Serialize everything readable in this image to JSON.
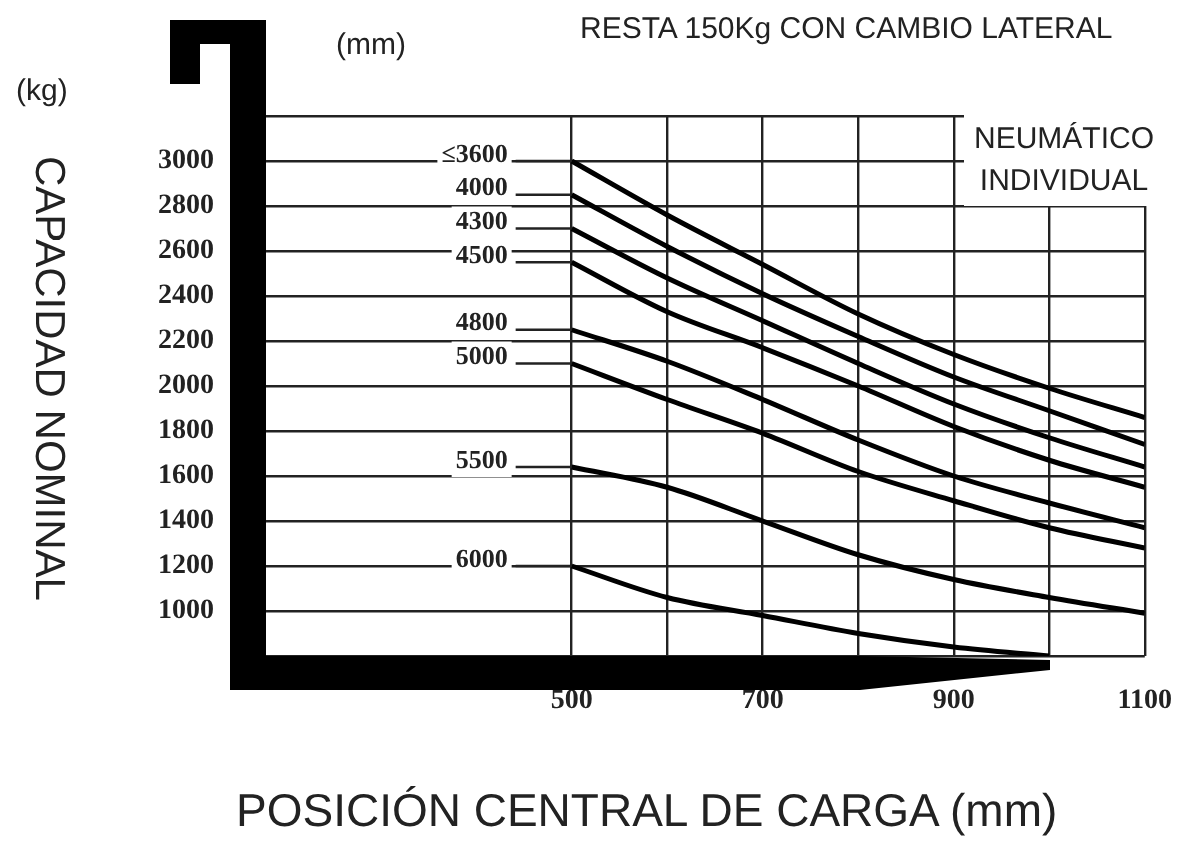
{
  "chart_data": {
    "type": "line",
    "title": "RESTA 150Kg CON CAMBIO LATERAL",
    "xlabel": "POSICIÓN CENTRAL DE CARGA (mm)",
    "ylabel": "CAPACIDAD NOMINAL",
    "annotations": [
      "(kg)",
      "(mm)",
      "NEUMÁTICO INDIVIDUAL"
    ],
    "x": [
      500,
      600,
      700,
      800,
      900,
      1000,
      1100
    ],
    "series": [
      {
        "name": "≤3600",
        "color": "#000000",
        "values": [
          3000,
          2760,
          2540,
          2320,
          2140,
          1990,
          1860
        ]
      },
      {
        "name": "4000",
        "color": "#000000",
        "values": [
          2850,
          2620,
          2410,
          2220,
          2040,
          1890,
          1740
        ]
      },
      {
        "name": "4300",
        "color": "#000000",
        "values": [
          2700,
          2480,
          2290,
          2100,
          1920,
          1770,
          1640
        ]
      },
      {
        "name": "4500",
        "color": "#000000",
        "values": [
          2550,
          2330,
          2170,
          2000,
          1820,
          1670,
          1550
        ]
      },
      {
        "name": "4800",
        "color": "#000000",
        "values": [
          2250,
          2110,
          1940,
          1760,
          1600,
          1480,
          1370
        ]
      },
      {
        "name": "5000",
        "color": "#000000",
        "values": [
          2100,
          1940,
          1790,
          1620,
          1490,
          1370,
          1280
        ]
      },
      {
        "name": "5500",
        "color": "#000000",
        "values": [
          1640,
          1550,
          1400,
          1250,
          1140,
          1060,
          990
        ]
      },
      {
        "name": "6000",
        "color": "#000000",
        "values": [
          1200,
          1060,
          980,
          900,
          840,
          800,
          null
        ]
      }
    ],
    "xlim": [
      180,
      1100
    ],
    "xticks": [
      500,
      {
        "value": 600,
        "label": null
      },
      700,
      {
        "value": 800,
        "label": null
      },
      900,
      {
        "value": 1000,
        "label": null
      },
      1100
    ],
    "ylim": [
      800,
      3200
    ],
    "yticks": [
      {
        "value": 800,
        "label": null
      },
      1000,
      1200,
      1400,
      1600,
      1800,
      2000,
      2200,
      2400,
      2600,
      2800,
      3000,
      {
        "value": 3200,
        "label": null
      }
    ],
    "grid": true,
    "legend": false,
    "marker": "none",
    "line_style": "solid"
  }
}
